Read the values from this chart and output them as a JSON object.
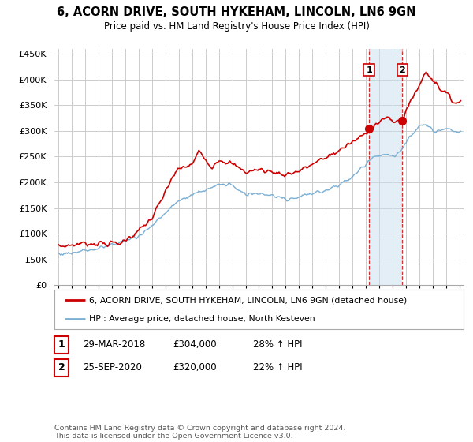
{
  "title": "6, ACORN DRIVE, SOUTH HYKEHAM, LINCOLN, LN6 9GN",
  "subtitle": "Price paid vs. HM Land Registry's House Price Index (HPI)",
  "legend_line1": "6, ACORN DRIVE, SOUTH HYKEHAM, LINCOLN, LN6 9GN (detached house)",
  "legend_line2": "HPI: Average price, detached house, North Kesteven",
  "footnote": "Contains HM Land Registry data © Crown copyright and database right 2024.\nThis data is licensed under the Open Government Licence v3.0.",
  "annotation1": {
    "num": "1",
    "date": "29-MAR-2018",
    "price": "£304,000",
    "change": "28% ↑ HPI"
  },
  "annotation2": {
    "num": "2",
    "date": "25-SEP-2020",
    "price": "£320,000",
    "change": "22% ↑ HPI"
  },
  "sale1_year": 2018.23,
  "sale1_price": 304000,
  "sale2_year": 2020.73,
  "sale2_price": 320000,
  "red_color": "#cc0000",
  "blue_color": "#7bafd4",
  "blue_fill": "#c8dff0",
  "background_color": "#ffffff",
  "grid_color": "#cccccc",
  "ylim": [
    0,
    460000
  ],
  "xlim_start": 1994.7,
  "xlim_end": 2025.3
}
